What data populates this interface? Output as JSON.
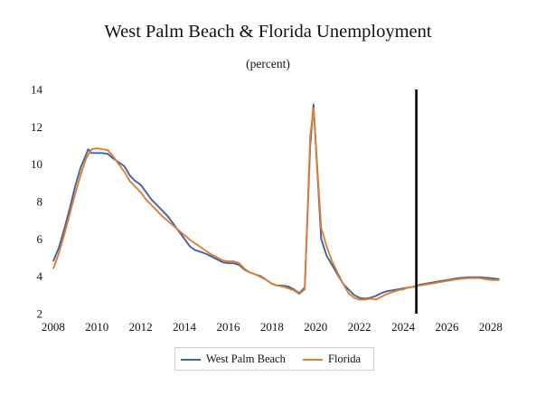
{
  "chart_data": {
    "type": "line",
    "title": "West Palm Beach & Florida Unemployment",
    "subtitle": "(percent)",
    "xlabel": "",
    "ylabel": "",
    "xlim": [
      2007.8,
      2028.5
    ],
    "ylim": [
      2,
      14
    ],
    "yticks": [
      2,
      4,
      6,
      8,
      10,
      12,
      14
    ],
    "xticks": [
      2008,
      2010,
      2012,
      2014,
      2016,
      2018,
      2020,
      2022,
      2024,
      2026,
      2028
    ],
    "grid": false,
    "legend_position": "bottom",
    "forecast_line_x": 2024.6,
    "series": [
      {
        "name": "West Palm Beach",
        "color": "#3a64a8",
        "x": [
          2008.0,
          2008.25,
          2008.5,
          2008.75,
          2009.0,
          2009.25,
          2009.5,
          2009.6,
          2009.75,
          2010.0,
          2010.25,
          2010.5,
          2010.75,
          2011.0,
          2011.25,
          2011.5,
          2011.75,
          2012.0,
          2012.25,
          2012.5,
          2012.75,
          2013.0,
          2013.25,
          2013.5,
          2013.75,
          2014.0,
          2014.25,
          2014.5,
          2014.75,
          2015.0,
          2015.25,
          2015.5,
          2015.75,
          2016.0,
          2016.25,
          2016.5,
          2016.75,
          2017.0,
          2017.25,
          2017.5,
          2017.75,
          2018.0,
          2018.25,
          2018.5,
          2018.75,
          2019.0,
          2019.25,
          2019.5,
          2019.75,
          2019.9,
          2020.25,
          2020.5,
          2020.75,
          2021.0,
          2021.25,
          2021.5,
          2021.75,
          2022.0,
          2022.25,
          2022.5,
          2022.75,
          2023.0,
          2023.25,
          2023.5,
          2023.75,
          2024.0,
          2024.25,
          2024.5,
          2024.75,
          2025.0,
          2025.5,
          2026.0,
          2026.5,
          2027.0,
          2027.5,
          2028.0,
          2028.4
        ],
        "y": [
          4.8,
          5.5,
          6.5,
          7.6,
          8.8,
          9.8,
          10.5,
          10.8,
          10.6,
          10.6,
          10.6,
          10.55,
          10.3,
          10.1,
          9.9,
          9.4,
          9.1,
          8.9,
          8.5,
          8.1,
          7.8,
          7.5,
          7.2,
          6.8,
          6.4,
          6.0,
          5.6,
          5.4,
          5.3,
          5.2,
          5.05,
          4.9,
          4.75,
          4.7,
          4.7,
          4.6,
          4.35,
          4.2,
          4.1,
          4.0,
          3.8,
          3.6,
          3.5,
          3.5,
          3.45,
          3.3,
          3.1,
          3.4,
          11.0,
          13.2,
          6.0,
          5.1,
          4.6,
          4.1,
          3.6,
          3.3,
          3.0,
          2.85,
          2.8,
          2.85,
          2.95,
          3.1,
          3.2,
          3.25,
          3.3,
          3.35,
          3.4,
          3.45,
          3.55,
          3.6,
          3.7,
          3.8,
          3.9,
          3.95,
          3.95,
          3.9,
          3.85
        ]
      },
      {
        "name": "Florida",
        "color": "#e07d30",
        "x": [
          2008.0,
          2008.25,
          2008.5,
          2008.75,
          2009.0,
          2009.25,
          2009.5,
          2009.75,
          2010.0,
          2010.25,
          2010.5,
          2010.75,
          2011.0,
          2011.25,
          2011.5,
          2011.75,
          2012.0,
          2012.25,
          2012.5,
          2012.75,
          2013.0,
          2013.25,
          2013.5,
          2013.75,
          2014.0,
          2014.25,
          2014.5,
          2014.75,
          2015.0,
          2015.25,
          2015.5,
          2015.75,
          2016.0,
          2016.25,
          2016.5,
          2016.75,
          2017.0,
          2017.25,
          2017.5,
          2017.75,
          2018.0,
          2018.25,
          2018.5,
          2018.75,
          2019.0,
          2019.25,
          2019.5,
          2019.75,
          2019.9,
          2020.25,
          2020.5,
          2020.75,
          2021.0,
          2021.25,
          2021.5,
          2021.75,
          2022.0,
          2022.25,
          2022.5,
          2022.75,
          2023.0,
          2023.25,
          2023.5,
          2023.75,
          2024.0,
          2024.25,
          2024.5,
          2024.75,
          2025.0,
          2025.5,
          2026.0,
          2026.5,
          2027.0,
          2027.5,
          2028.0,
          2028.4
        ],
        "y": [
          4.4,
          5.2,
          6.2,
          7.3,
          8.4,
          9.4,
          10.3,
          10.8,
          10.85,
          10.8,
          10.75,
          10.4,
          10.0,
          9.6,
          9.1,
          8.8,
          8.5,
          8.1,
          7.8,
          7.5,
          7.2,
          6.95,
          6.7,
          6.45,
          6.2,
          5.95,
          5.75,
          5.55,
          5.35,
          5.15,
          5.0,
          4.85,
          4.8,
          4.8,
          4.7,
          4.4,
          4.2,
          4.1,
          3.95,
          3.8,
          3.6,
          3.5,
          3.45,
          3.35,
          3.25,
          3.05,
          3.3,
          11.5,
          13.0,
          6.6,
          5.6,
          4.8,
          4.2,
          3.6,
          3.1,
          2.85,
          2.75,
          2.75,
          2.8,
          2.75,
          2.9,
          3.05,
          3.15,
          3.25,
          3.3,
          3.4,
          3.45,
          3.5,
          3.55,
          3.65,
          3.75,
          3.85,
          3.9,
          3.9,
          3.8,
          3.8
        ]
      }
    ]
  }
}
